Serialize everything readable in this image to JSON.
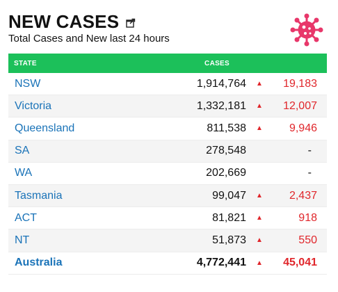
{
  "header": {
    "title": "NEW CASES",
    "subtitle": "Total Cases and New last 24 hours"
  },
  "icons": {
    "popout": "popout-icon",
    "virus": "virus-icon",
    "virus_color": "#e8376a"
  },
  "table": {
    "columns": [
      "STATE",
      "CASES"
    ],
    "rows": [
      {
        "state": "NSW",
        "cases": "1,914,764",
        "new": "19,183",
        "trend": "up"
      },
      {
        "state": "Victoria",
        "cases": "1,332,181",
        "new": "12,007",
        "trend": "up"
      },
      {
        "state": "Queensland",
        "cases": "811,538",
        "new": "9,946",
        "trend": "up"
      },
      {
        "state": "SA",
        "cases": "278,548",
        "new": "-",
        "trend": "none"
      },
      {
        "state": "WA",
        "cases": "202,669",
        "new": "-",
        "trend": "none"
      },
      {
        "state": "Tasmania",
        "cases": "99,047",
        "new": "2,437",
        "trend": "up"
      },
      {
        "state": "ACT",
        "cases": "81,821",
        "new": "918",
        "trend": "up"
      },
      {
        "state": "NT",
        "cases": "51,873",
        "new": "550",
        "trend": "up"
      }
    ],
    "total": {
      "state": "Australia",
      "cases": "4,772,441",
      "new": "45,041",
      "trend": "up"
    }
  },
  "colors": {
    "header_bg": "#1cc05a",
    "link": "#1a73b8",
    "increase": "#e0262b"
  },
  "arrow_glyph": "▲"
}
